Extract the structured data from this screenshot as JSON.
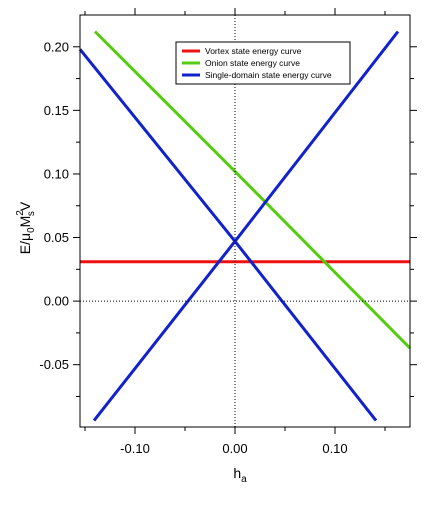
{
  "chart_data": {
    "type": "line",
    "title": "",
    "xlabel_main": "h",
    "xlabel_sub": "a",
    "ylabel": {
      "p1": "E/",
      "mu": "μ",
      "sub0": "0",
      "M": "M",
      "sup2": "2",
      "subs": "s",
      "V": "V"
    },
    "xlim": [
      -0.155,
      0.175
    ],
    "ylim": [
      -0.099,
      0.225
    ],
    "x_ticks": [
      {
        "value": -0.1,
        "label": "-0.10"
      },
      {
        "value": 0.0,
        "label": "0.00"
      },
      {
        "value": 0.1,
        "label": "0.10"
      }
    ],
    "x_minor_ticks": [
      -0.15,
      -0.05,
      0.05,
      0.15
    ],
    "y_ticks": [
      {
        "value": -0.05,
        "label": "-0.05"
      },
      {
        "value": 0.0,
        "label": "0.00"
      },
      {
        "value": 0.05,
        "label": "0.05"
      },
      {
        "value": 0.1,
        "label": "0.10"
      },
      {
        "value": 0.15,
        "label": "0.15"
      },
      {
        "value": 0.2,
        "label": "0.20"
      }
    ],
    "y_minor_ticks": [
      -0.075,
      -0.025,
      0.025,
      0.075,
      0.125,
      0.175
    ],
    "reference_lines": {
      "x": 0,
      "y": 0,
      "style": "dotted"
    },
    "legend_position": "top-right",
    "series": [
      {
        "name": "Vortex state energy curve",
        "color": "#ee1111",
        "x": [
          -0.155,
          0.175
        ],
        "y": [
          0.031,
          0.031
        ]
      },
      {
        "name": "Onion state energy curve",
        "color": "#55cc11",
        "x": [
          -0.14,
          0.0,
          0.175
        ],
        "y": [
          0.212,
          0.102,
          -0.037
        ]
      },
      {
        "name": "Single-domain state energy curve",
        "color": "#1122cc",
        "x": [
          -0.155,
          0.0,
          0.141
        ],
        "y": [
          0.198,
          0.047,
          -0.094
        ]
      },
      {
        "name": "",
        "color": "#1122cc",
        "x": [
          -0.141,
          0.0,
          0.163
        ],
        "y": [
          -0.094,
          0.047,
          0.212
        ]
      }
    ]
  }
}
